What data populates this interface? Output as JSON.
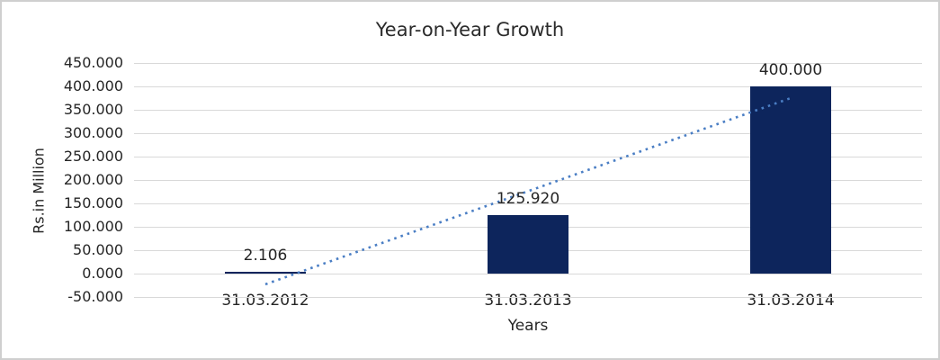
{
  "theme": {
    "background": "#ffffff",
    "frame_border_color": "#cfcfcf",
    "text_color": "#262626",
    "gridline_color": "#d9d9d9"
  },
  "chart_data": {
    "type": "bar",
    "title": "Year-on-Year Growth",
    "xlabel": "Years",
    "ylabel": "Rs.in Million",
    "categories": [
      "31.03.2012",
      "31.03.2013",
      "31.03.2014"
    ],
    "values": [
      2.106,
      125.92,
      400.0
    ],
    "value_labels": [
      "2.106",
      "125.920",
      "400.000"
    ],
    "ylim": [
      -50,
      450
    ],
    "ytick_step": 50,
    "ytick_labels": [
      "450.000",
      "400.000",
      "350.000",
      "300.000",
      "250.000",
      "200.000",
      "150.000",
      "100.000",
      "50.000",
      "0.000",
      "-50.000"
    ],
    "grid": true,
    "legend": "none",
    "bar_color": "#0d255c",
    "trendline": {
      "type": "linear",
      "style": "dotted",
      "color": "#4a7ec4",
      "fit_values": [
        -22.9,
        176.0,
        375.0
      ]
    }
  }
}
